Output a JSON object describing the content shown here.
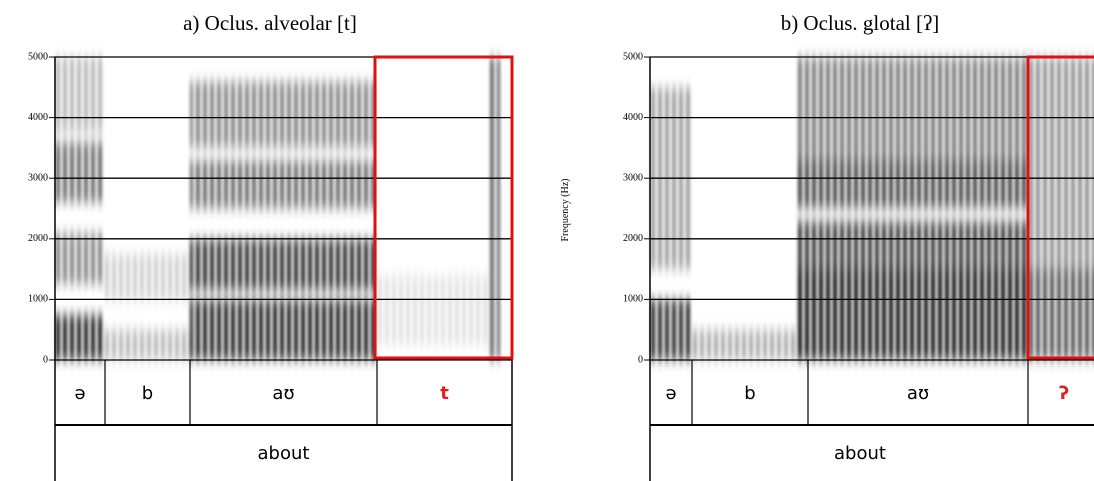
{
  "panels": [
    {
      "title": "a) Oclus. alveolar [t]",
      "yticks": [
        0,
        1000,
        2000,
        3000,
        4000,
        5000
      ],
      "phones": [
        "ə",
        "b",
        "aʊ",
        "t"
      ],
      "word": "about"
    },
    {
      "title": "b) Oclus. glotal [ʔ]",
      "y_label": "Frequency (Hz)",
      "yticks": [
        0,
        1000,
        2000,
        3000,
        4000,
        5000
      ],
      "phones": [
        "ə",
        "b",
        "aʊ",
        "ʔ"
      ],
      "word": "about"
    }
  ]
}
